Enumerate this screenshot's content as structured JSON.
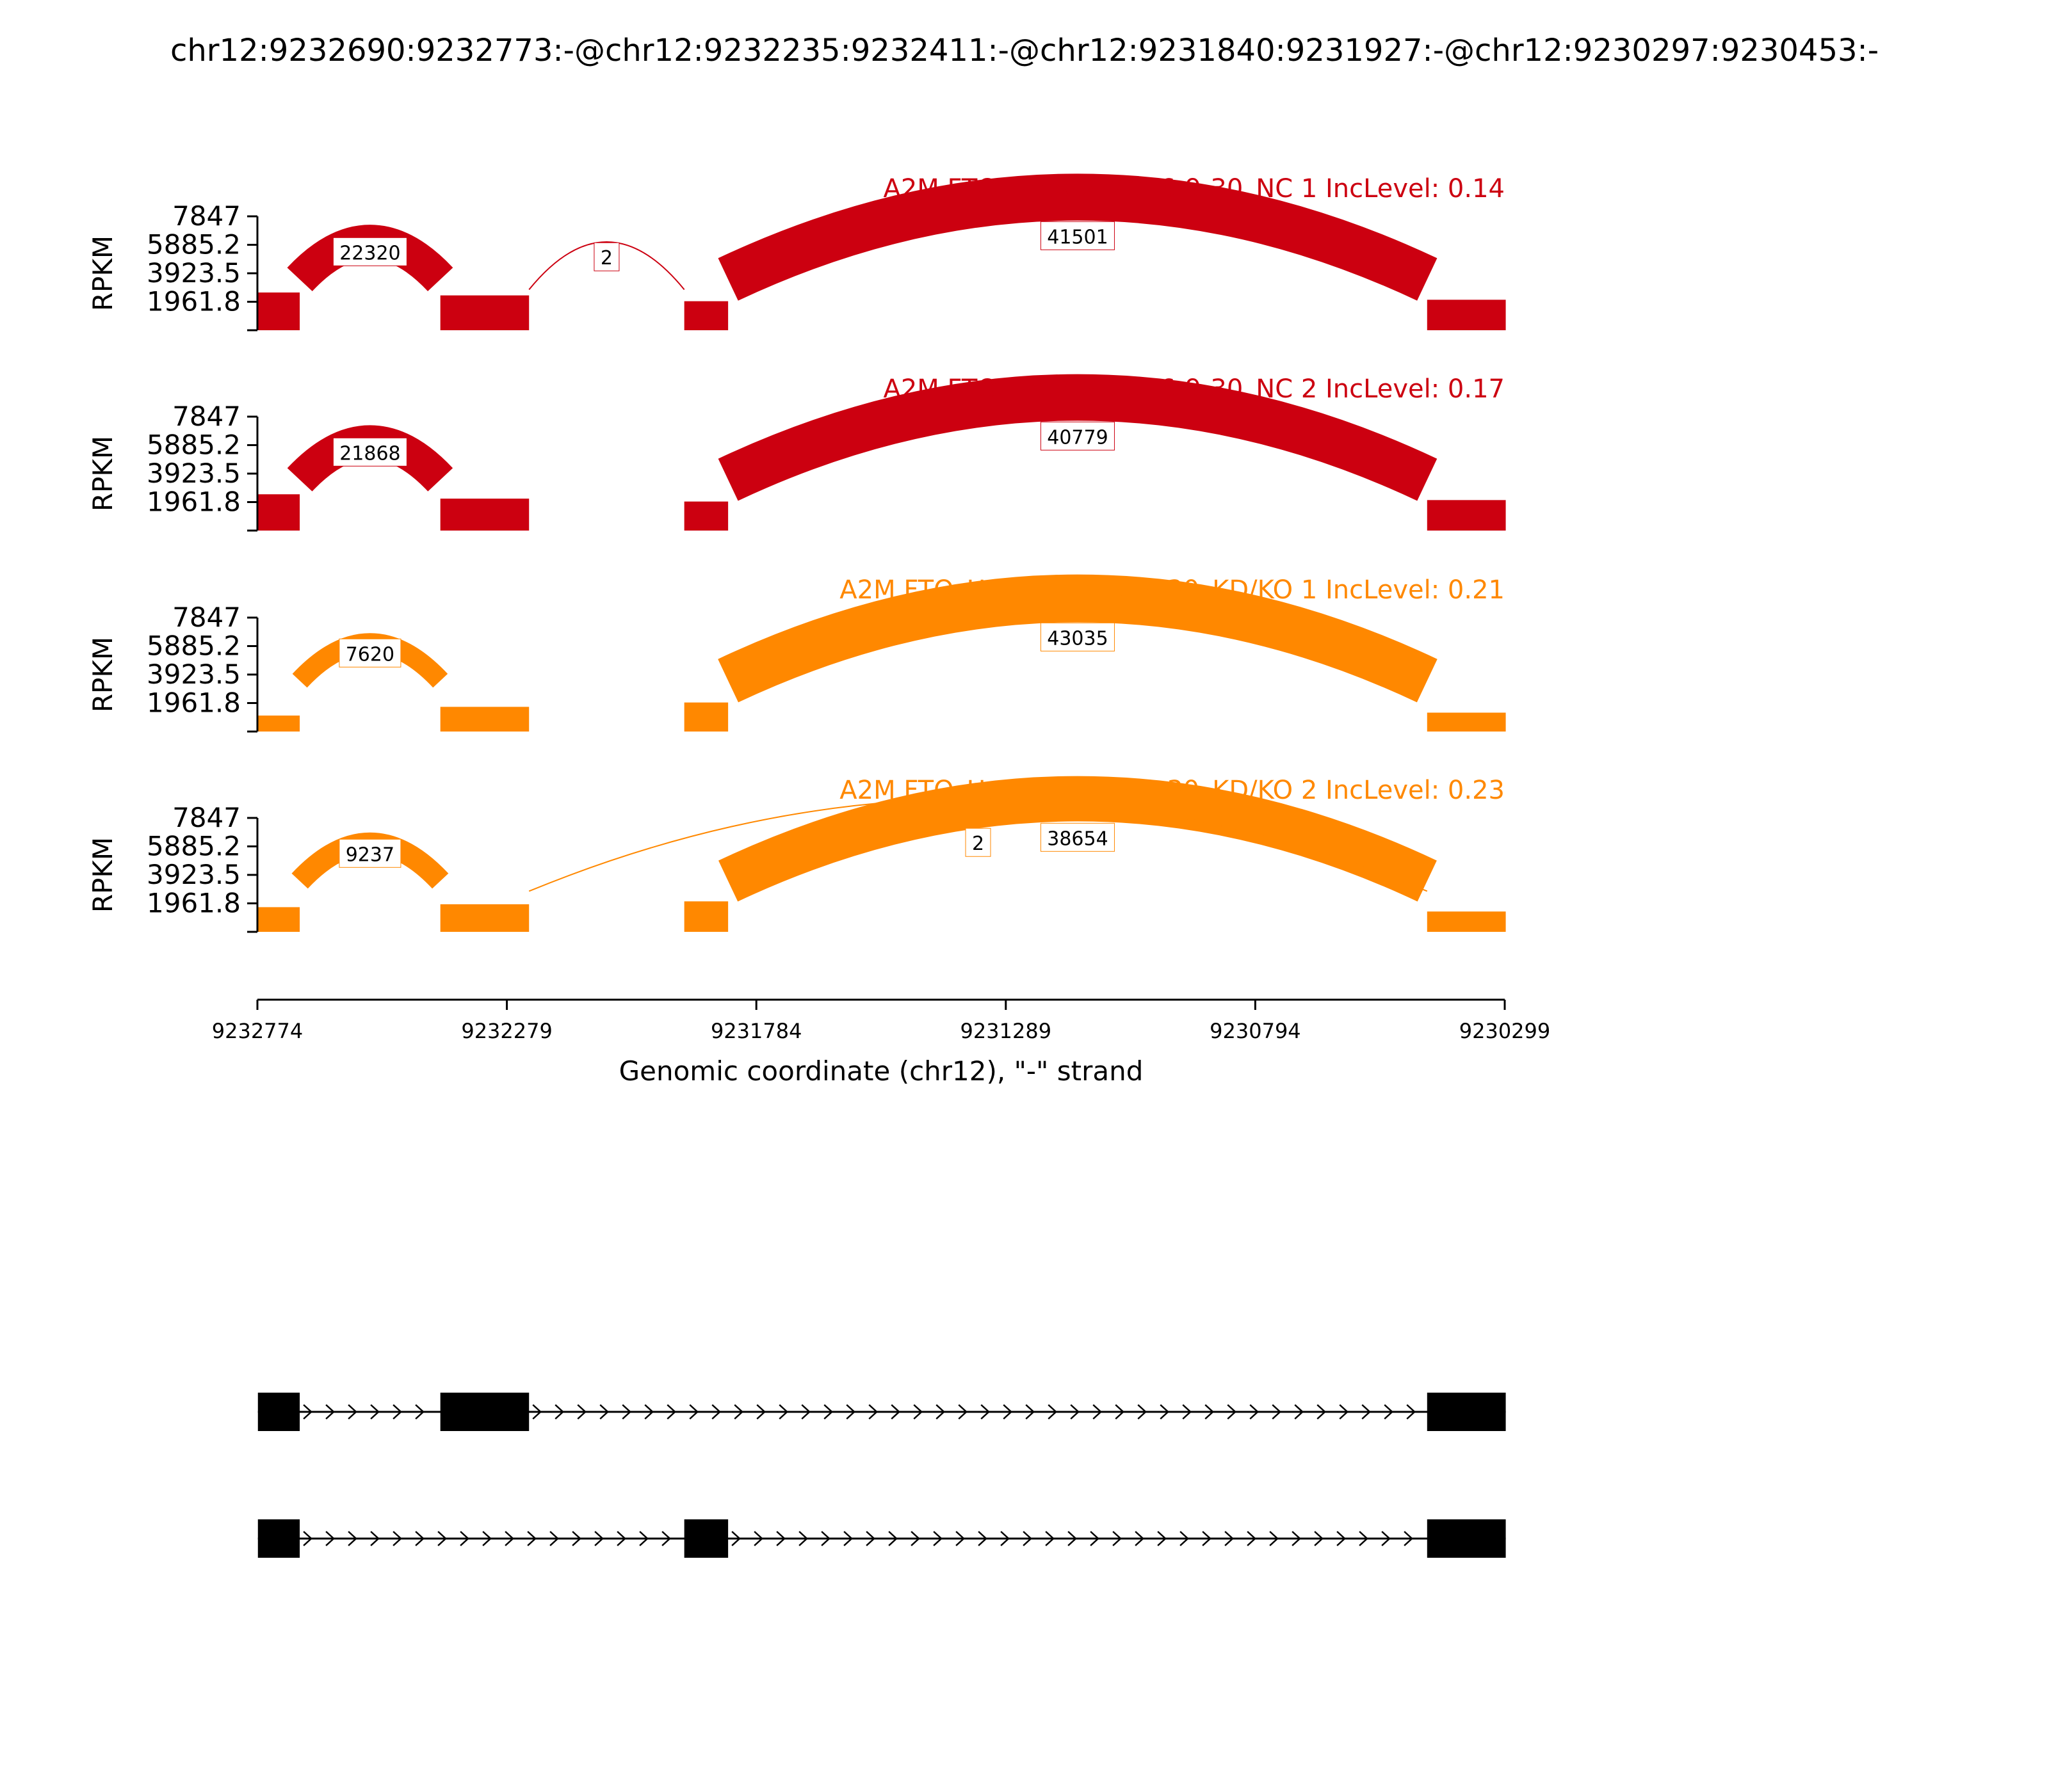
{
  "chart_data": {
    "type": "sashimi",
    "title": "chr12:9232690:9232773:-@chr12:9232235:9232411:-@chr12:9231840:9231927:-@chr12:9230297:9230453:-",
    "ylabel": "RPKM",
    "xlabel": "Genomic coordinate (chr12), \"-\" strand",
    "x_range": [
      9232774,
      9230299
    ],
    "x_ticks": [
      "9232774",
      "9232279",
      "9231784",
      "9231289",
      "9230794",
      "9230299"
    ],
    "y_range": [
      0,
      7847
    ],
    "y_ticks": [
      "1961.8",
      "3923.5",
      "5885.2",
      "7847"
    ],
    "exons": [
      {
        "start": 9232773,
        "end": 9232690
      },
      {
        "start": 9232411,
        "end": 9232235
      },
      {
        "start": 9231927,
        "end": 9231840
      },
      {
        "start": 9230453,
        "end": 9230297
      }
    ],
    "tracks": [
      {
        "label": "A2M FTO_HepG2_2016-9-30_NC 1 IncLevel: 0.14",
        "color": "#CC0010",
        "exon_coverage": [
          2600,
          2400,
          2000,
          2100
        ],
        "junctions": [
          {
            "from": 9232690,
            "to": 9232411,
            "count": "22320"
          },
          {
            "from": 9232235,
            "to": 9231927,
            "count": "2"
          },
          {
            "from": 9231840,
            "to": 9230453,
            "count": "41501"
          }
        ]
      },
      {
        "label": "A2M FTO_HepG2_2016-9-30_NC 2 IncLevel: 0.17",
        "color": "#CC0010",
        "exon_coverage": [
          2500,
          2200,
          2000,
          2100
        ],
        "junctions": [
          {
            "from": 9232690,
            "to": 9232411,
            "count": "21868"
          },
          {
            "from": 9231840,
            "to": 9230453,
            "count": "40779"
          }
        ]
      },
      {
        "label": "A2M FTO_HepG2_2016-9-30_KD/KO 1 IncLevel: 0.21",
        "color": "#FF8800",
        "exon_coverage": [
          1100,
          1700,
          2000,
          1300
        ],
        "junctions": [
          {
            "from": 9232690,
            "to": 9232411,
            "count": "7620"
          },
          {
            "from": 9231840,
            "to": 9230453,
            "count": "43035"
          }
        ]
      },
      {
        "label": "A2M FTO_HepG2_2016-9-30_KD/KO 2 IncLevel: 0.23",
        "color": "#FF8800",
        "exon_coverage": [
          1700,
          1900,
          2100,
          1400
        ],
        "junctions": [
          {
            "from": 9232690,
            "to": 9232411,
            "count": "9237"
          },
          {
            "from": 9231840,
            "to": 9230453,
            "count": "38654"
          },
          {
            "from": 9232235,
            "to": 9230453,
            "count": "2"
          }
        ]
      }
    ],
    "isoforms": [
      {
        "exons": [
          0,
          1,
          3
        ]
      },
      {
        "exons": [
          0,
          2,
          3
        ]
      }
    ]
  }
}
